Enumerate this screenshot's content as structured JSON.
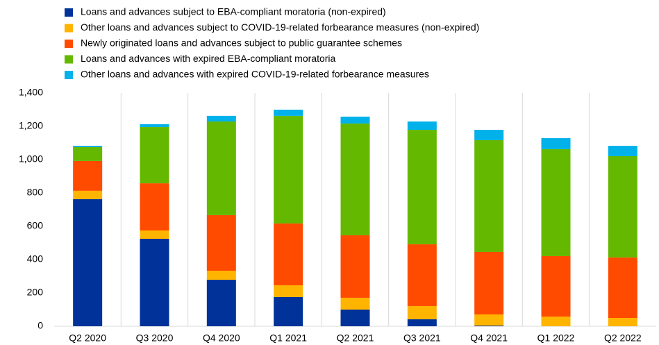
{
  "chart_data": {
    "type": "stacked_bar",
    "categories": [
      "Q2 2020",
      "Q3 2020",
      "Q4 2020",
      "Q1 2021",
      "Q2 2021",
      "Q3 2021",
      "Q4 2021",
      "Q1 2022",
      "Q2 2022"
    ],
    "series": [
      {
        "name": "Loans and advances subject to EBA-compliant moratoria (non-expired)",
        "color": "#003299",
        "values": [
          763,
          525,
          279,
          175,
          100,
          42,
          4,
          0,
          0
        ]
      },
      {
        "name": "Other loans and advances subject to COVID-19-related forbearance measures (non-expired)",
        "color": "#ffb400",
        "values": [
          50,
          50,
          54,
          71,
          71,
          79,
          67,
          58,
          50
        ]
      },
      {
        "name": "Newly originated loans and advances subject to public guarantee schemes",
        "color": "#ff4b00",
        "values": [
          179,
          283,
          334,
          371,
          375,
          371,
          375,
          363,
          363
        ]
      },
      {
        "name": "Loans and advances with expired EBA-compliant moratoria",
        "color": "#65b800",
        "values": [
          83,
          338,
          562,
          646,
          671,
          687,
          671,
          642,
          608
        ]
      },
      {
        "name": "Other loans and advances with expired COVID-19-related forbearance measures",
        "color": "#00b1ea",
        "values": [
          8,
          17,
          34,
          37,
          41,
          50,
          62,
          66,
          62
        ]
      }
    ],
    "ylim": [
      0,
      1400
    ],
    "yticks": [
      0,
      200,
      400,
      600,
      800,
      {
        "value": 1000,
        "label": "1,000"
      },
      {
        "value": 1200,
        "label": "1,200"
      },
      {
        "value": 1400,
        "label": "1,400"
      }
    ],
    "grid": true,
    "legend": "top-left"
  }
}
